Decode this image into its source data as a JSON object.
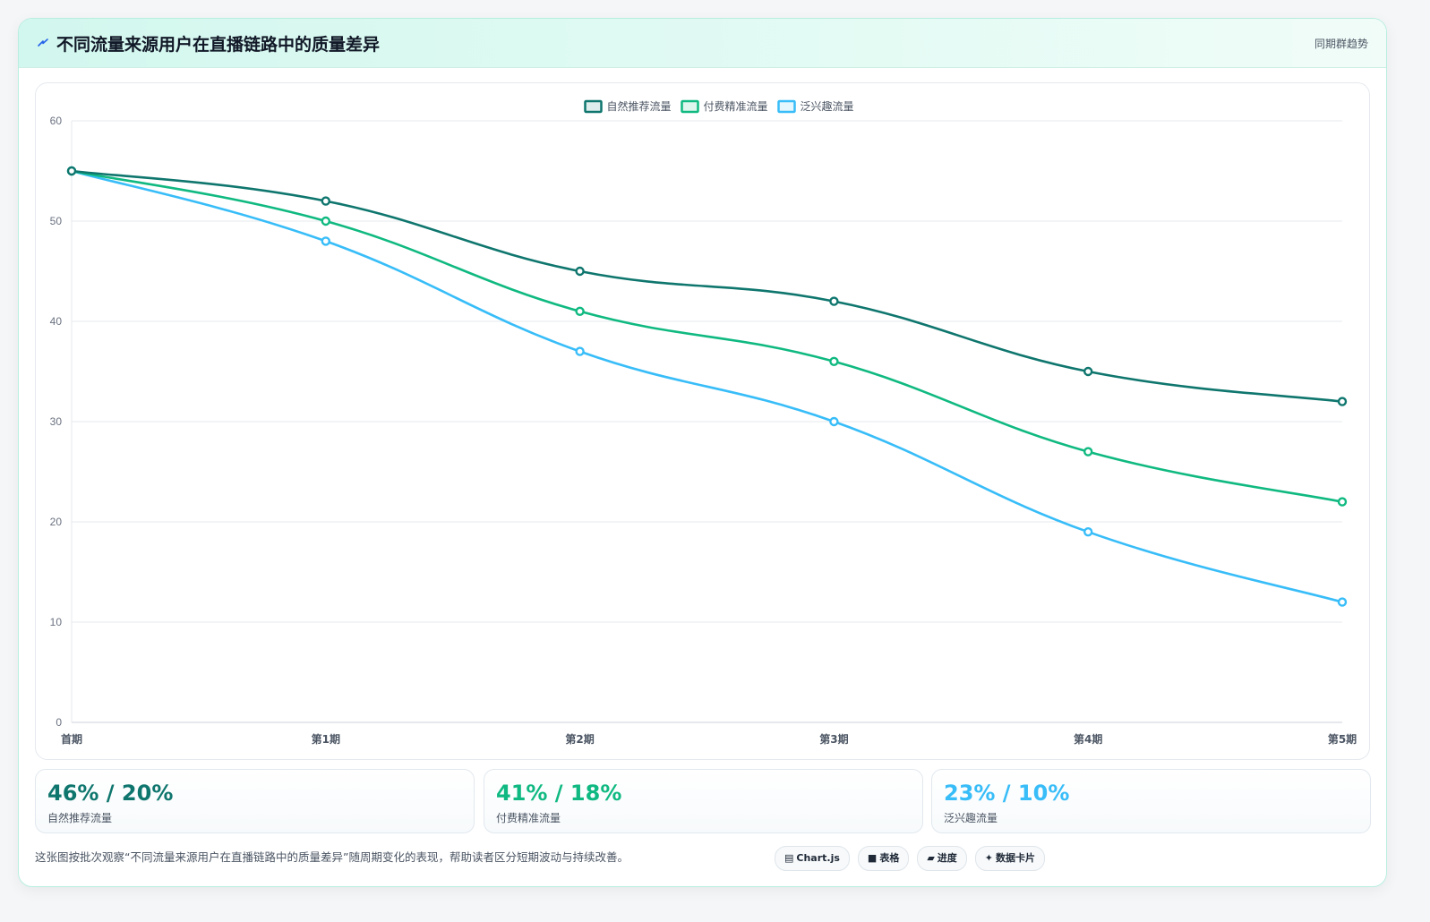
{
  "header": {
    "icon": "lightning-icon",
    "title": "不同流量来源用户在直播链路中的质量差异",
    "subtitle": "同期群趋势"
  },
  "chart_data": {
    "type": "line",
    "title": "",
    "xlabel": "",
    "ylabel": "",
    "categories": [
      "首期",
      "第1期",
      "第2期",
      "第3期",
      "第4期",
      "第5期"
    ],
    "yticks": [
      0,
      10,
      20,
      30,
      40,
      50,
      60
    ],
    "ylim": [
      0,
      60
    ],
    "grid": true,
    "legend": "top-center",
    "series": [
      {
        "name": "自然推荐流量",
        "color": "#0f766e",
        "values": [
          55,
          52,
          45,
          42,
          35,
          32
        ]
      },
      {
        "name": "付费精准流量",
        "color": "#10b981",
        "values": [
          55,
          50,
          41,
          36,
          27,
          22
        ]
      },
      {
        "name": "泛兴趣流量",
        "color": "#38bdf8",
        "values": [
          55,
          48,
          37,
          30,
          19,
          12
        ]
      }
    ]
  },
  "stats": [
    {
      "value": "46% / 20%",
      "label": "自然推荐流量",
      "color": "#0f766e"
    },
    {
      "value": "41% / 18%",
      "label": "付费精准流量",
      "color": "#10b981"
    },
    {
      "value": "23% / 10%",
      "label": "泛兴趣流量",
      "color": "#38bdf8"
    }
  ],
  "footer": {
    "note": "这张图按批次观察“不同流量来源用户在直播链路中的质量差异”随周期变化的表现，帮助读者区分短期波动与持续改善。",
    "tags": [
      {
        "icon": "chart-icon",
        "glyph": "▤",
        "label": "Chart.js"
      },
      {
        "icon": "table-icon",
        "glyph": "■",
        "label": "表格"
      },
      {
        "icon": "progress-icon",
        "glyph": "▰",
        "label": "进度"
      },
      {
        "icon": "sparkle-icon",
        "glyph": "✦",
        "label": "数据卡片"
      }
    ]
  }
}
